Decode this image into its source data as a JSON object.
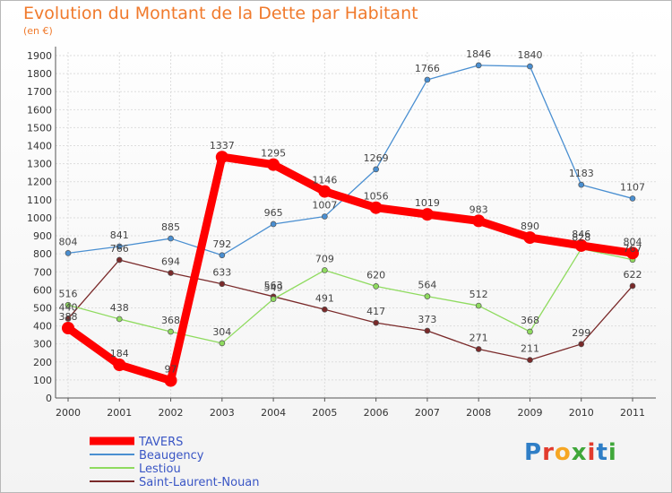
{
  "title": "Evolution du Montant de la Dette par Habitant",
  "subtitle": "(en €)",
  "logo": {
    "text": "Proxiti",
    "colors": [
      "#2f7ec6",
      "#e23b2d",
      "#f6a623",
      "#3fa73a",
      "#e23b2d",
      "#2f7ec6",
      "#3fa73a"
    ]
  },
  "chart_data": {
    "type": "line",
    "x": [
      "2000",
      "2001",
      "2002",
      "2003",
      "2004",
      "2005",
      "2006",
      "2007",
      "2008",
      "2009",
      "2010",
      "2011"
    ],
    "ylim": [
      0,
      1900
    ],
    "yticks": [
      0,
      100,
      200,
      300,
      400,
      500,
      600,
      700,
      800,
      900,
      1000,
      1100,
      1200,
      1300,
      1400,
      1500,
      1600,
      1700,
      1800,
      1900
    ],
    "legend_position": "bottom-left",
    "series": [
      {
        "name": "TAVERS",
        "color": "#ff0000",
        "values": [
          388,
          184,
          97,
          1337,
          1295,
          1146,
          1056,
          1019,
          983,
          890,
          846,
          804
        ],
        "labels": [
          "388",
          "184",
          "97",
          "1337",
          "1295",
          "1146",
          "1056",
          "1019",
          "983",
          "890",
          "",
          ""
        ]
      },
      {
        "name": "Beaugency",
        "color": "#4a8fd1",
        "values": [
          804,
          841,
          885,
          792,
          965,
          1007,
          1269,
          1766,
          1846,
          1840,
          1183,
          1107
        ],
        "labels": [
          "804",
          "841",
          "885",
          "792",
          "965",
          "1007",
          "1269",
          "1766",
          "1846",
          "1840",
          "1183",
          "1107"
        ]
      },
      {
        "name": "Lestiou",
        "color": "#8fdb5f",
        "values": [
          516,
          438,
          368,
          304,
          549,
          709,
          620,
          564,
          512,
          368,
          828,
          767
        ],
        "labels": [
          "516",
          "438",
          "368",
          "304",
          "549",
          "709",
          "620",
          "564",
          "512",
          "368",
          "828",
          "767"
        ]
      },
      {
        "name": "Saint-Laurent-Nouan",
        "color": "#7a2a2a",
        "values": [
          440,
          766,
          694,
          633,
          563,
          491,
          417,
          373,
          271,
          211,
          299,
          622
        ],
        "labels": [
          "440",
          "766",
          "694",
          "633",
          "563",
          "491",
          "417",
          "373",
          "271",
          "211",
          "299",
          "622"
        ]
      }
    ],
    "overlap_labels": [
      {
        "text": "846",
        "x": "2010",
        "y": 846
      },
      {
        "text": "804",
        "x": "2011",
        "y": 804
      }
    ]
  }
}
